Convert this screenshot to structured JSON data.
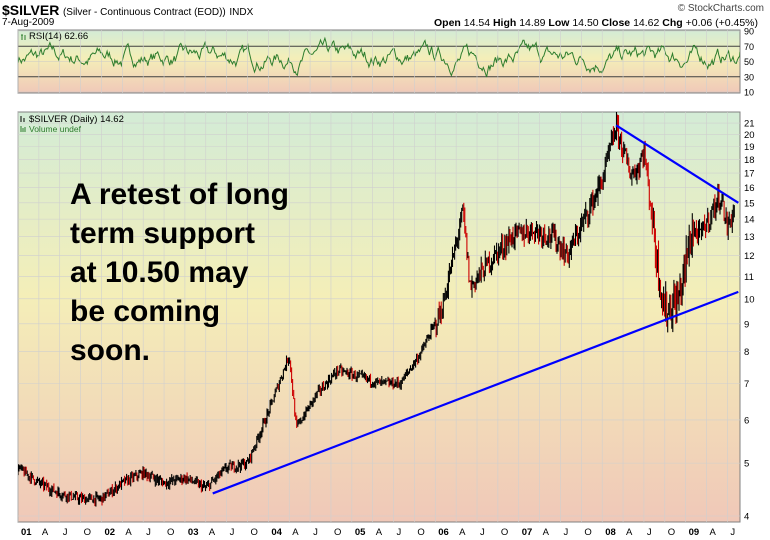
{
  "header": {
    "symbol": "$SILVER",
    "name": "(Silver - Continuous Contract (EOD))",
    "exchange": "INDX",
    "date": "7-Aug-2009",
    "open_label": "Open",
    "open": "14.54",
    "high_label": "High",
    "high": "14.89",
    "low_label": "Low",
    "low": "14.50",
    "close_label": "Close",
    "close": "14.62",
    "chg_label": "Chg",
    "chg": "+0.06 (+0.45%)",
    "brand": "© StockCharts.com"
  },
  "annotation": "A retest of long term support at 10.50 may be coming soon.",
  "colors": {
    "background_top": "#d3ecd6",
    "background_mid": "#f4eeb8",
    "background_bottom": "#f0c8b8",
    "rsi_line": "#2d7d2d",
    "price_bar": "#000000",
    "down_bar": "#cc0000",
    "trendline": "#0000ff"
  },
  "chart_data": [
    {
      "type": "line",
      "panel": "RSI",
      "legend": "RSI(14) 62.66",
      "last_value": 62.66,
      "ylim": [
        10,
        90
      ],
      "y_ticks": [
        10,
        30,
        50,
        70,
        90
      ],
      "reference_lines": [
        30,
        70
      ]
    },
    {
      "type": "line",
      "panel": "price",
      "legend": "$SILVER (Daily) 14.62",
      "volume_legend": "Volume undef",
      "y_scale": "log",
      "ylim": [
        3.9,
        22
      ],
      "y_ticks": [
        4,
        5,
        6,
        7,
        8,
        9,
        10,
        11,
        12,
        13,
        14,
        15,
        16,
        17,
        18,
        19,
        20,
        21
      ],
      "x_ticks": [
        "01",
        "A",
        "J",
        "O",
        "02",
        "A",
        "J",
        "O",
        "03",
        "A",
        "J",
        "O",
        "04",
        "A",
        "J",
        "O",
        "05",
        "A",
        "J",
        "O",
        "06",
        "A",
        "J",
        "O",
        "07",
        "A",
        "J",
        "O",
        "08",
        "A",
        "J",
        "O",
        "09",
        "A",
        "J"
      ],
      "x_range": [
        "2001-01",
        "2009-08"
      ],
      "series": [
        {
          "points": [
            [
              "2001-01",
              4.9
            ],
            [
              "2001-04",
              4.6
            ],
            [
              "2001-07",
              4.4
            ],
            [
              "2001-10",
              4.3
            ],
            [
              "2002-01",
              4.3
            ],
            [
              "2002-04",
              4.6
            ],
            [
              "2002-07",
              4.8
            ],
            [
              "2002-10",
              4.6
            ],
            [
              "2003-01",
              4.7
            ],
            [
              "2003-04",
              4.5
            ],
            [
              "2003-07",
              4.9
            ],
            [
              "2003-10",
              5.0
            ],
            [
              "2004-01",
              6.2
            ],
            [
              "2004-04",
              7.9
            ],
            [
              "2004-05",
              5.8
            ],
            [
              "2004-08",
              6.7
            ],
            [
              "2004-11",
              7.4
            ],
            [
              "2005-02",
              7.2
            ],
            [
              "2005-05",
              7.0
            ],
            [
              "2005-08",
              7.0
            ],
            [
              "2005-11",
              8.0
            ],
            [
              "2006-02",
              9.6
            ],
            [
              "2006-05",
              14.5
            ],
            [
              "2006-06",
              10.5
            ],
            [
              "2006-09",
              11.8
            ],
            [
              "2006-12",
              13.0
            ],
            [
              "2007-03",
              13.4
            ],
            [
              "2007-06",
              13.0
            ],
            [
              "2007-08",
              12.0
            ],
            [
              "2007-11",
              14.5
            ],
            [
              "2008-01",
              16.5
            ],
            [
              "2008-03",
              20.7
            ],
            [
              "2008-05",
              17.0
            ],
            [
              "2008-06",
              17.2
            ],
            [
              "2008-07",
              18.8
            ],
            [
              "2008-09",
              11.5
            ],
            [
              "2008-10",
              9.5
            ],
            [
              "2008-12",
              10.0
            ],
            [
              "2009-02",
              13.5
            ],
            [
              "2009-03",
              13.0
            ],
            [
              "2009-06",
              15.5
            ],
            [
              "2009-07",
              13.5
            ],
            [
              "2009-08",
              14.62
            ]
          ]
        }
      ],
      "trendlines": [
        {
          "from": [
            "2003-05",
            4.4
          ],
          "to": [
            "2009-08",
            10.3
          ]
        },
        {
          "from": [
            "2008-03",
            20.8
          ],
          "to": [
            "2009-08",
            15.0
          ]
        }
      ]
    }
  ]
}
